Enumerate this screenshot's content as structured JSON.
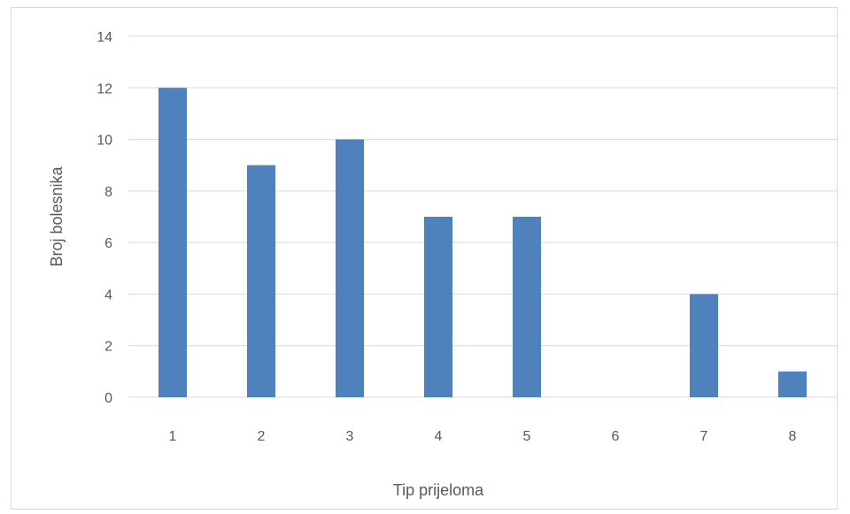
{
  "chart_data": {
    "type": "bar",
    "title": "",
    "xlabel": "Tip prijeloma",
    "ylabel": "Broj bolesnika",
    "categories": [
      "1",
      "2",
      "3",
      "4",
      "5",
      "6",
      "7",
      "8"
    ],
    "values": [
      12,
      9,
      10,
      7,
      7,
      0,
      4,
      1
    ],
    "ylim": [
      0,
      14
    ],
    "yticks": [
      "0",
      "2",
      "4",
      "6",
      "8",
      "10",
      "12",
      "14"
    ],
    "grid": true,
    "legend": "none",
    "colors": {
      "bar": "#4f81bd",
      "grid": "#d9d9d9",
      "text": "#595959"
    }
  }
}
